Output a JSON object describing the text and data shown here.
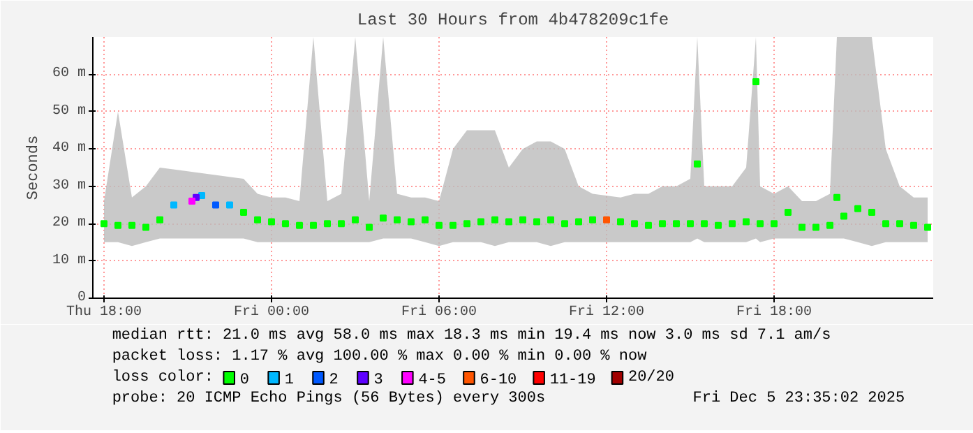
{
  "chart_data": {
    "type": "scatter",
    "title": "Last 30 Hours from 4b478209c1fe",
    "ylabel": "Seconds",
    "xlim": [
      "2025-12-04T17:36",
      "2025-12-05T23:42"
    ],
    "xticks": [
      {
        "value": "2025-12-04T18:00",
        "label": "Thu 18:00"
      },
      {
        "value": "2025-12-05T00:00",
        "label": "Fri 00:00"
      },
      {
        "value": "2025-12-05T06:00",
        "label": "Fri 06:00"
      },
      {
        "value": "2025-12-05T12:00",
        "label": "Fri 12:00"
      },
      {
        "value": "2025-12-05T18:00",
        "label": "Fri 18:00"
      }
    ],
    "ylim": [
      0,
      70
    ],
    "yticks": [
      0,
      {
        "value": 10,
        "label": "10 m"
      },
      {
        "value": 20,
        "label": "20 m"
      },
      {
        "value": 30,
        "label": "30 m"
      },
      {
        "value": 40,
        "label": "40 m"
      },
      {
        "value": 50,
        "label": "50 m"
      },
      {
        "value": 60,
        "label": "60 m"
      }
    ],
    "grid": true,
    "marker": "square",
    "legend": "bottom",
    "legend_title": "loss color:",
    "series": [
      {
        "name": "0",
        "color": "#00ff00",
        "x": [
          "2025-12-04T18:00",
          "2025-12-04T18:30",
          "2025-12-04T19:00",
          "2025-12-04T19:30",
          "2025-12-04T20:00",
          "2025-12-04T23:00",
          "2025-12-04T23:30",
          "2025-12-05T00:00",
          "2025-12-05T00:30",
          "2025-12-05T01:00",
          "2025-12-05T01:30",
          "2025-12-05T02:00",
          "2025-12-05T02:30",
          "2025-12-05T03:00",
          "2025-12-05T03:30",
          "2025-12-05T04:00",
          "2025-12-05T04:30",
          "2025-12-05T05:00",
          "2025-12-05T05:30",
          "2025-12-05T06:00",
          "2025-12-05T06:30",
          "2025-12-05T07:00",
          "2025-12-05T07:30",
          "2025-12-05T08:00",
          "2025-12-05T08:30",
          "2025-12-05T09:00",
          "2025-12-05T09:30",
          "2025-12-05T10:00",
          "2025-12-05T10:30",
          "2025-12-05T11:00",
          "2025-12-05T11:30",
          "2025-12-05T12:30",
          "2025-12-05T13:00",
          "2025-12-05T13:30",
          "2025-12-05T14:00",
          "2025-12-05T14:30",
          "2025-12-05T15:00",
          "2025-12-05T15:15",
          "2025-12-05T15:30",
          "2025-12-05T16:00",
          "2025-12-05T16:30",
          "2025-12-05T17:00",
          "2025-12-05T17:21",
          "2025-12-05T17:30",
          "2025-12-05T18:00",
          "2025-12-05T18:30",
          "2025-12-05T19:00",
          "2025-12-05T19:30",
          "2025-12-05T20:00",
          "2025-12-05T20:15",
          "2025-12-05T20:30",
          "2025-12-05T21:00",
          "2025-12-05T21:30",
          "2025-12-05T22:00",
          "2025-12-05T22:30",
          "2025-12-05T23:00",
          "2025-12-05T23:30"
        ],
        "values": [
          20,
          19.5,
          19.5,
          19,
          21,
          23,
          21,
          20.5,
          20,
          19.5,
          19.5,
          20,
          20,
          21,
          19,
          21.5,
          21,
          20.5,
          21,
          19.5,
          19.5,
          20,
          20.5,
          21,
          20.5,
          21,
          20.5,
          21,
          20,
          20.5,
          21,
          20.5,
          20,
          19.5,
          20,
          20,
          20,
          36,
          20,
          19.5,
          20,
          20.5,
          58,
          20,
          20,
          23,
          19,
          19,
          19.5,
          27,
          22,
          24,
          23,
          20,
          20,
          19.5,
          19
        ],
        "lower": [
          15,
          15,
          14,
          15,
          16,
          16,
          15,
          15,
          15,
          15,
          15,
          15,
          15,
          15,
          15,
          16,
          16,
          16,
          15,
          14,
          15,
          15,
          15,
          14,
          15,
          15,
          15,
          14,
          15,
          15,
          15,
          15,
          15,
          15,
          15,
          15,
          15,
          16,
          15,
          15,
          15,
          15,
          16,
          15,
          16,
          16,
          16,
          16,
          16,
          16,
          16,
          15,
          14,
          15,
          15,
          15,
          15
        ],
        "upper": [
          26,
          50,
          27,
          30,
          35,
          32,
          28,
          27,
          27,
          26,
          70,
          26,
          28,
          70,
          26,
          70,
          28,
          27,
          27,
          26,
          40,
          45,
          45,
          45,
          35,
          40,
          42,
          42,
          40,
          30,
          28,
          27,
          28,
          28,
          30,
          30,
          32,
          70,
          30,
          30,
          30,
          35,
          70,
          30,
          28,
          30,
          26,
          26,
          28,
          70,
          70,
          70,
          70,
          40,
          30,
          27,
          27
        ]
      },
      {
        "name": "1",
        "color": "#00b8ff",
        "x": [
          "2025-12-04T20:30",
          "2025-12-04T21:30",
          "2025-12-04T22:30"
        ],
        "values": [
          25,
          27.5,
          25
        ]
      },
      {
        "name": "2",
        "color": "#0059ff",
        "x": [
          "2025-12-04T22:00"
        ],
        "values": [
          25
        ]
      },
      {
        "name": "3",
        "color": "#5e00ff",
        "x": [
          "2025-12-04T21:18"
        ],
        "values": [
          27
        ]
      },
      {
        "name": "4-5",
        "color": "#ff00ff",
        "x": [
          "2025-12-04T21:09"
        ],
        "values": [
          26
        ]
      },
      {
        "name": "6-10",
        "color": "#ff5500",
        "x": [
          "2025-12-05T12:00"
        ],
        "values": [
          21
        ]
      },
      {
        "name": "11-19",
        "color": "#ff0000"
      },
      {
        "name": "20/20",
        "color": "#a10000"
      }
    ],
    "annotations": [
      "median rtt:  21.0 ms avg  58.0 ms max  18.3 ms min  19.4 ms now  3.0 ms sd  7.1   am/s",
      "packet loss: 1.17 % avg  100.00 % max   0.00 % min   0.00 % now",
      "probe:       20 ICMP Echo Pings (56 Bytes) every 300s",
      "Fri Dec  5 23:35:02 2025"
    ]
  }
}
